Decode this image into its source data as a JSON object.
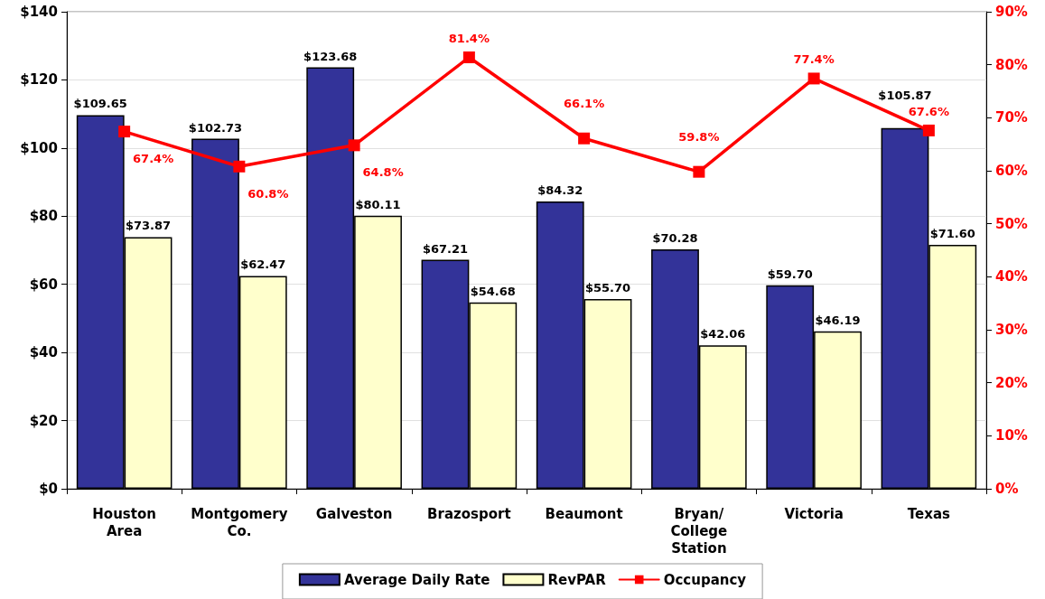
{
  "chart_data": {
    "type": "bar",
    "categories": [
      "Houston Area",
      "Montgomery Co.",
      "Galveston",
      "Brazosport",
      "Beaumont",
      "Bryan/ College Station",
      "Victoria",
      "Texas"
    ],
    "series": [
      {
        "name": "Average Daily Rate",
        "color": "#333399",
        "values": [
          109.65,
          102.73,
          123.68,
          67.21,
          84.32,
          70.28,
          59.7,
          105.87
        ],
        "value_labels": [
          "$109.65",
          "$102.73",
          "$123.68",
          "$67.21",
          "$84.32",
          "$70.28",
          "$59.70",
          "$105.87"
        ]
      },
      {
        "name": "RevPAR",
        "color": "#ffffcc",
        "values": [
          73.87,
          62.47,
          80.11,
          54.68,
          55.7,
          42.06,
          46.19,
          71.6
        ],
        "value_labels": [
          "$73.87",
          "$62.47",
          "$80.11",
          "$54.68",
          "$55.70",
          "$42.06",
          "$46.19",
          "$71.60"
        ]
      },
      {
        "name": "Occupancy",
        "type": "line",
        "axis": "y2",
        "color": "#ff0000",
        "values": [
          67.4,
          60.8,
          64.8,
          81.4,
          66.1,
          59.8,
          77.4,
          67.6
        ],
        "value_labels": [
          "67.4%",
          "60.8%",
          "64.8%",
          "81.4%",
          "66.1%",
          "59.8%",
          "77.4%",
          "67.6%"
        ]
      }
    ],
    "ylim": [
      0,
      140
    ],
    "yticks": [
      {
        "value": 0,
        "label": "$0"
      },
      {
        "value": 20,
        "label": "$20"
      },
      {
        "value": 40,
        "label": "$40"
      },
      {
        "value": 60,
        "label": "$60"
      },
      {
        "value": 80,
        "label": "$80"
      },
      {
        "value": 100,
        "label": "$100"
      },
      {
        "value": 120,
        "label": "$120"
      },
      {
        "value": 140,
        "label": "$140"
      }
    ],
    "y2lim": [
      0,
      90
    ],
    "y2ticks": [
      {
        "value": 0,
        "label": "0%"
      },
      {
        "value": 10,
        "label": "10%"
      },
      {
        "value": 20,
        "label": "20%"
      },
      {
        "value": 30,
        "label": "30%"
      },
      {
        "value": 40,
        "label": "40%"
      },
      {
        "value": 50,
        "label": "50%"
      },
      {
        "value": 60,
        "label": "60%"
      },
      {
        "value": 70,
        "label": "70%"
      },
      {
        "value": 80,
        "label": "80%"
      },
      {
        "value": 90,
        "label": "90%"
      }
    ],
    "grid": "y",
    "legend": "bottom",
    "marker": "square",
    "line_style": "solid"
  }
}
